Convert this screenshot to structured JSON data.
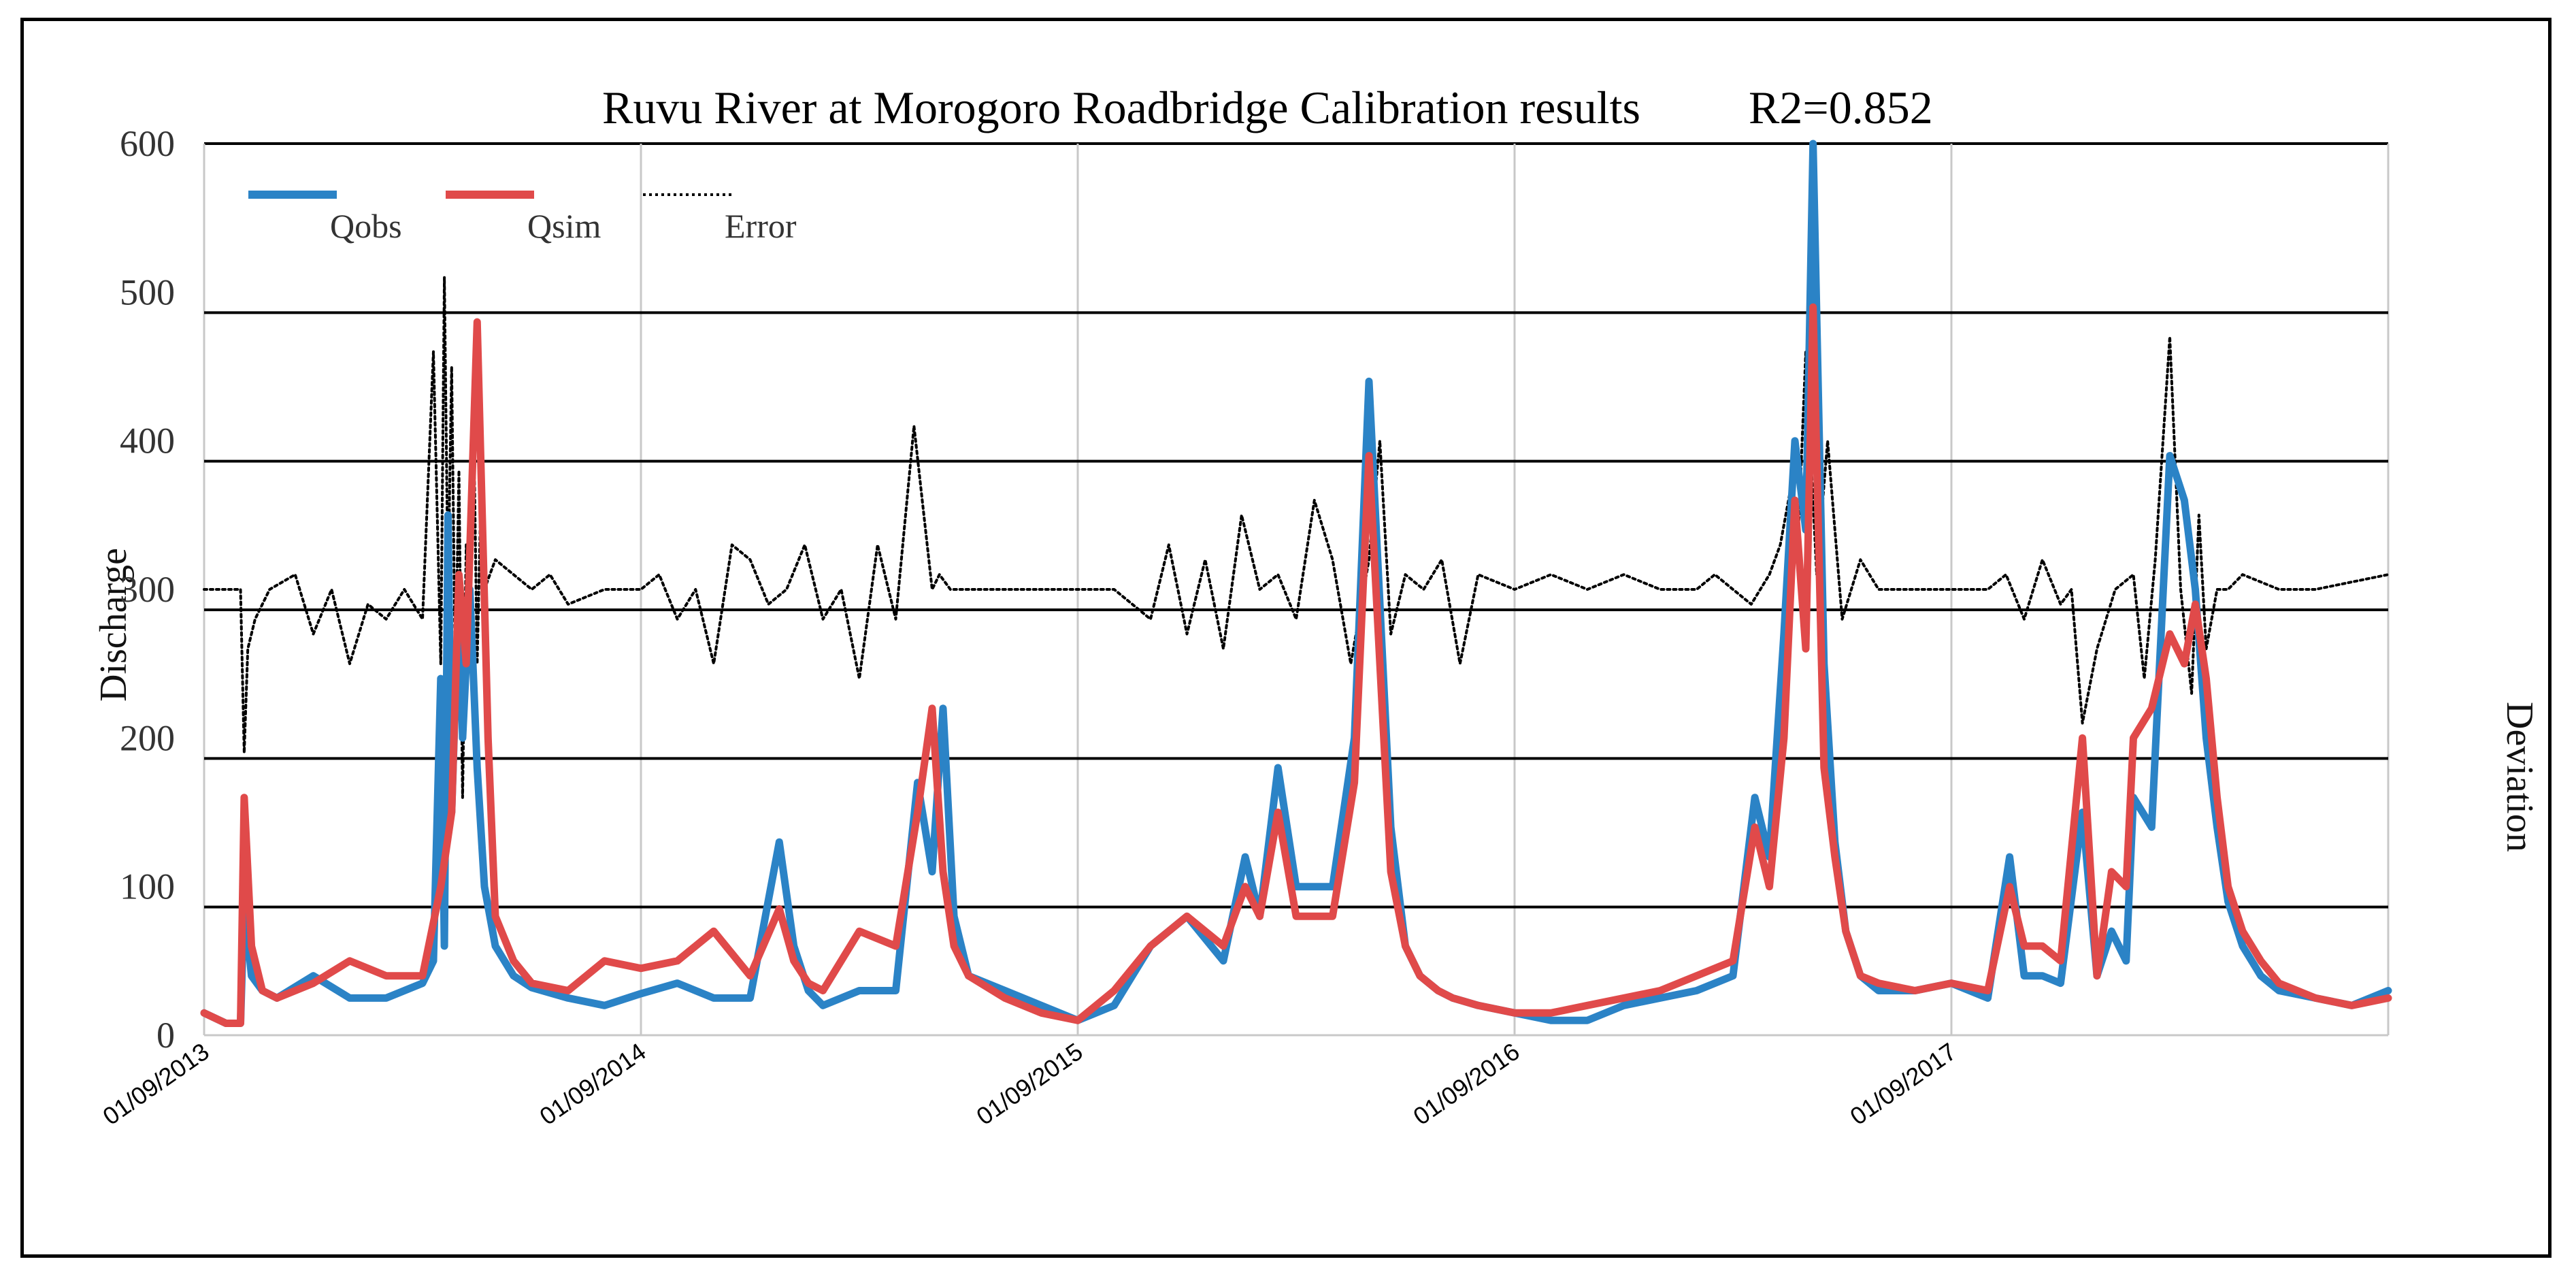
{
  "chart_data": {
    "type": "line",
    "title": "Ruvu River at Morogoro Roadbridge   Calibration results",
    "title_stat": "R2=0.852",
    "ylabel": "Discharge",
    "y2label": "Deviation",
    "ylim": [
      0,
      600
    ],
    "yticks": [
      "0",
      "100",
      "200",
      "300",
      "400",
      "500",
      "600"
    ],
    "x_range_months": [
      0,
      60
    ],
    "x_ticks": [
      {
        "label": "01/09/2013",
        "month": 0
      },
      {
        "label": "01/09/2014",
        "month": 12
      },
      {
        "label": "01/09/2015",
        "month": 24
      },
      {
        "label": "01/09/2016",
        "month": 36
      },
      {
        "label": "01/09/2017",
        "month": 48
      }
    ],
    "legend": [
      "Qobs",
      "Qsim",
      "Error"
    ],
    "colors": {
      "Qobs": "#2b83c6",
      "Qsim": "#e04a4a",
      "Error": "#000000"
    },
    "series": [
      {
        "name": "Qobs",
        "x": [
          0,
          0.6,
          1.0,
          1.1,
          1.3,
          1.6,
          2,
          3,
          4,
          5,
          6,
          6.3,
          6.5,
          6.6,
          6.7,
          6.8,
          7.0,
          7.1,
          7.3,
          7.5,
          7.7,
          8.0,
          8.5,
          9,
          10,
          11,
          12,
          13,
          14,
          15,
          15.8,
          16.2,
          16.6,
          17,
          18,
          19,
          19.6,
          20,
          20.3,
          20.6,
          21,
          22,
          23,
          24,
          25,
          26,
          27,
          28,
          28.6,
          29,
          29.5,
          30,
          31,
          31.6,
          32,
          32.6,
          33,
          33.4,
          33.9,
          34.3,
          35,
          36,
          37,
          38,
          39,
          40,
          41,
          42,
          42.6,
          43,
          43.4,
          43.7,
          44,
          44.2,
          44.5,
          44.8,
          45.1,
          45.5,
          46,
          47,
          48,
          49,
          49.6,
          50,
          50.5,
          51,
          51.6,
          52,
          52.4,
          52.8,
          53,
          53.5,
          54,
          54.4,
          54.7,
          55,
          55.3,
          55.6,
          56,
          56.5,
          57,
          58,
          59,
          60
        ],
        "y": [
          15,
          8,
          8,
          90,
          40,
          30,
          25,
          40,
          25,
          25,
          35,
          50,
          240,
          60,
          350,
          150,
          300,
          200,
          300,
          180,
          100,
          60,
          40,
          32,
          25,
          20,
          28,
          35,
          25,
          25,
          130,
          60,
          30,
          20,
          30,
          30,
          170,
          110,
          220,
          80,
          40,
          30,
          20,
          10,
          20,
          60,
          80,
          50,
          120,
          80,
          180,
          100,
          100,
          200,
          440,
          140,
          60,
          40,
          30,
          25,
          20,
          15,
          10,
          10,
          20,
          25,
          30,
          40,
          160,
          120,
          270,
          400,
          340,
          600,
          250,
          130,
          70,
          40,
          30,
          30,
          35,
          25,
          120,
          40,
          40,
          35,
          150,
          40,
          70,
          50,
          160,
          140,
          390,
          360,
          300,
          200,
          140,
          90,
          60,
          40,
          30,
          25,
          20,
          30
        ]
      },
      {
        "name": "Qsim",
        "x": [
          0,
          0.6,
          1.0,
          1.1,
          1.3,
          1.6,
          2,
          3,
          4,
          5,
          6,
          6.5,
          6.8,
          7.0,
          7.2,
          7.5,
          7.8,
          8.0,
          8.5,
          9,
          10,
          11,
          12,
          13,
          14,
          15,
          15.8,
          16.2,
          16.6,
          17,
          18,
          19,
          19.6,
          20,
          20.3,
          20.6,
          21,
          22,
          23,
          24,
          25,
          26,
          27,
          28,
          28.6,
          29,
          29.5,
          30,
          31,
          31.6,
          32,
          32.6,
          33,
          33.4,
          33.9,
          34.3,
          35,
          36,
          37,
          38,
          39,
          40,
          41,
          42,
          42.6,
          43,
          43.4,
          43.7,
          44,
          44.2,
          44.5,
          44.8,
          45.1,
          45.5,
          46,
          47,
          48,
          49,
          49.6,
          50,
          50.5,
          51,
          51.6,
          52,
          52.4,
          52.8,
          53,
          53.5,
          54,
          54.4,
          54.7,
          55,
          55.3,
          55.6,
          56,
          56.5,
          57,
          58,
          59,
          60
        ],
        "y": [
          15,
          8,
          8,
          160,
          60,
          30,
          25,
          35,
          50,
          40,
          40,
          100,
          150,
          310,
          250,
          480,
          200,
          80,
          50,
          35,
          30,
          50,
          45,
          50,
          70,
          40,
          85,
          50,
          35,
          30,
          70,
          60,
          150,
          220,
          110,
          60,
          40,
          25,
          15,
          10,
          30,
          60,
          80,
          60,
          100,
          80,
          150,
          80,
          80,
          170,
          390,
          110,
          60,
          40,
          30,
          25,
          20,
          15,
          15,
          20,
          25,
          30,
          40,
          50,
          140,
          100,
          200,
          360,
          260,
          490,
          180,
          120,
          70,
          40,
          35,
          30,
          35,
          30,
          100,
          60,
          60,
          50,
          200,
          40,
          110,
          100,
          200,
          220,
          270,
          250,
          290,
          240,
          160,
          100,
          70,
          50,
          35,
          25,
          20,
          25
        ]
      },
      {
        "name": "Error",
        "x": [
          0,
          1,
          1.1,
          1.2,
          1.4,
          1.8,
          2.5,
          3,
          3.5,
          4,
          4.5,
          5,
          5.5,
          6,
          6.3,
          6.5,
          6.6,
          6.7,
          6.8,
          6.9,
          7.0,
          7.1,
          7.2,
          7.3,
          7.4,
          7.5,
          7.6,
          7.7,
          8,
          8.5,
          9,
          9.5,
          10,
          11,
          12,
          12.5,
          13,
          13.5,
          14,
          14.5,
          15,
          15.5,
          16,
          16.5,
          17,
          17.5,
          18,
          18.5,
          19,
          19.5,
          20,
          20.2,
          20.5,
          21,
          22,
          23,
          24,
          25,
          26,
          26.5,
          27,
          27.5,
          28,
          28.5,
          29,
          29.5,
          30,
          30.5,
          31,
          31.5,
          32,
          32.3,
          32.6,
          33,
          33.5,
          34,
          34.5,
          35,
          36,
          37,
          38,
          39,
          40,
          41,
          41.5,
          42,
          42.5,
          43,
          43.3,
          43.6,
          43.8,
          44,
          44.3,
          44.6,
          45,
          45.5,
          46,
          47,
          48,
          49,
          49.5,
          50,
          50.5,
          51,
          51.3,
          51.6,
          52,
          52.5,
          53,
          53.3,
          53.6,
          54,
          54.3,
          54.6,
          54.8,
          55,
          55.3,
          55.6,
          56,
          57,
          58,
          59,
          60
        ],
        "y": [
          300,
          300,
          190,
          260,
          280,
          300,
          310,
          270,
          300,
          250,
          290,
          280,
          300,
          280,
          460,
          250,
          510,
          300,
          450,
          240,
          380,
          160,
          330,
          280,
          420,
          250,
          360,
          300,
          320,
          310,
          300,
          310,
          290,
          300,
          300,
          310,
          280,
          300,
          250,
          330,
          320,
          290,
          300,
          330,
          280,
          300,
          240,
          330,
          280,
          410,
          300,
          310,
          300,
          300,
          300,
          300,
          300,
          300,
          280,
          330,
          270,
          320,
          260,
          350,
          300,
          310,
          280,
          360,
          320,
          250,
          320,
          400,
          270,
          310,
          300,
          320,
          250,
          310,
          300,
          310,
          300,
          310,
          300,
          300,
          310,
          300,
          290,
          310,
          330,
          370,
          340,
          460,
          310,
          400,
          280,
          320,
          300,
          300,
          300,
          300,
          310,
          280,
          320,
          290,
          300,
          210,
          260,
          300,
          310,
          240,
          320,
          470,
          300,
          230,
          350,
          260,
          300,
          300,
          310,
          300,
          300,
          305,
          310
        ]
      }
    ]
  }
}
